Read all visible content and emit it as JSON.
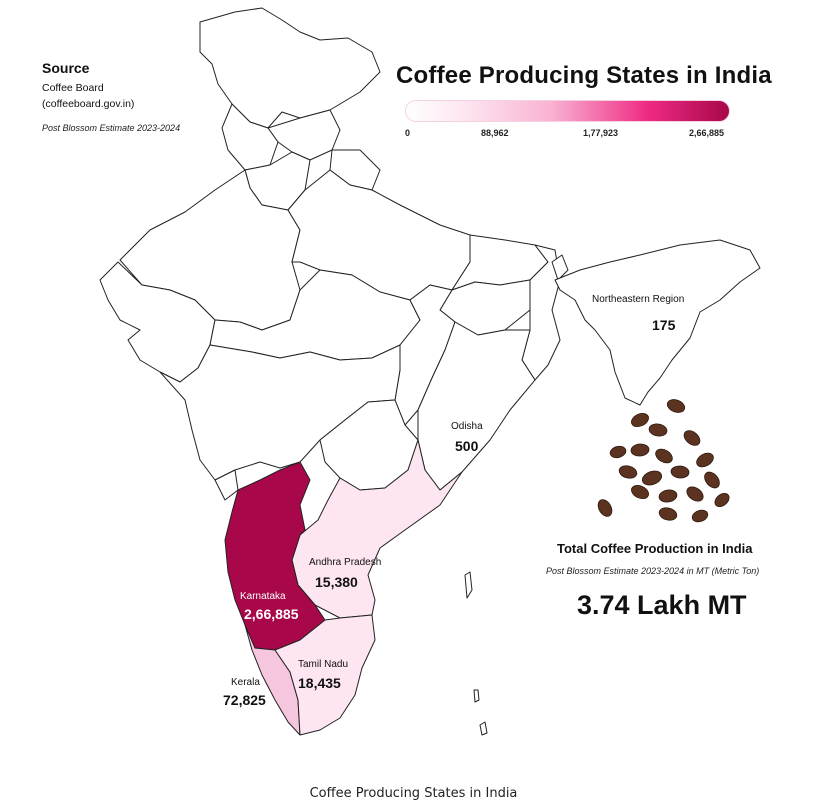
{
  "source": {
    "heading": "Source",
    "org": "Coffee Board",
    "site": "(coffeeboard.gov.in)",
    "period": "Post Blossom Estimate 2023-2024"
  },
  "title": "Coffee Producing States in India",
  "legend": {
    "ticks": [
      "0",
      "88,962",
      "1,77,923",
      "2,66,885"
    ],
    "colors": [
      "#ffffff",
      "#f9b2d2",
      "#ee2a83",
      "#a8084a"
    ]
  },
  "states": {
    "northeast": {
      "name": "Northeastern Region",
      "value": "175"
    },
    "odisha": {
      "name": "Odisha",
      "value": "500"
    },
    "andhra": {
      "name": "Andhra Pradesh",
      "value": "15,380"
    },
    "karnataka": {
      "name": "Karnataka",
      "value": "2,66,885",
      "color": "#a8084a"
    },
    "tamilnadu": {
      "name": "Tamil Nadu",
      "value": "18,435"
    },
    "kerala": {
      "name": "Kerala",
      "value": "72,825",
      "color": "#f6c5de"
    }
  },
  "total": {
    "label": "Total Coffee Production in India",
    "sub": "Post Blossom Estimate 2023-2024 in MT (Metric Ton)",
    "value": "3.74 Lakh MT"
  },
  "beans_icon": "coffee-beans-icon",
  "caption": "Coffee Producing States in India"
}
